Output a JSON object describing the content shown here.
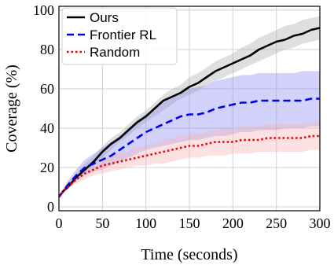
{
  "chart_data": {
    "type": "line",
    "xlabel": "Time (seconds)",
    "ylabel": "Coverage (%)",
    "xlim": [
      0,
      300
    ],
    "ylim": [
      -2,
      102
    ],
    "xticks": [
      0,
      50,
      100,
      150,
      200,
      250,
      300
    ],
    "yticks": [
      0,
      20,
      40,
      60,
      80,
      100
    ],
    "grid": true,
    "legend_position": "top-left",
    "x": [
      0,
      5,
      10,
      20,
      30,
      40,
      50,
      60,
      70,
      80,
      90,
      100,
      110,
      120,
      130,
      140,
      150,
      160,
      170,
      180,
      190,
      200,
      210,
      220,
      230,
      240,
      250,
      260,
      270,
      280,
      290,
      300
    ],
    "series": [
      {
        "name": "Ours",
        "color": "#000000",
        "band_color": "#b0b0b0",
        "dash": "solid",
        "values": [
          5,
          8,
          10,
          15,
          19,
          23,
          28,
          32,
          35,
          39,
          43,
          46,
          50,
          54,
          56,
          58,
          61,
          63,
          66,
          69,
          71,
          73,
          75,
          77,
          80,
          82,
          84,
          85,
          87,
          88,
          90,
          91
        ],
        "lower": [
          5,
          7,
          9,
          13,
          17,
          21,
          25,
          29,
          33,
          36,
          40,
          43,
          46,
          49,
          52,
          55,
          57,
          59,
          62,
          64,
          66,
          68,
          70,
          72,
          74,
          76,
          78,
          80,
          81,
          83,
          84,
          85
        ],
        "upper": [
          5,
          9,
          12,
          17,
          22,
          26,
          31,
          35,
          38,
          42,
          46,
          49,
          53,
          57,
          60,
          62,
          66,
          68,
          71,
          74,
          76,
          78,
          81,
          83,
          86,
          88,
          90,
          92,
          93,
          95,
          96,
          97
        ]
      },
      {
        "name": "Frontier RL",
        "color": "#0000ee",
        "band_color": "#8c8cf0",
        "dash": "dashed",
        "values": [
          5,
          8,
          11,
          16,
          20,
          22,
          24,
          26,
          29,
          32,
          35,
          38,
          40,
          42,
          44,
          46,
          47,
          47,
          48,
          50,
          51,
          52,
          53,
          53,
          54,
          54,
          54,
          54,
          54,
          54,
          55,
          55
        ],
        "lower": [
          5,
          7,
          9,
          13,
          16,
          18,
          19,
          21,
          23,
          25,
          27,
          29,
          30,
          31,
          32,
          33,
          34,
          34,
          35,
          36,
          36,
          37,
          38,
          38,
          39,
          39,
          39,
          40,
          40,
          40,
          41,
          41
        ],
        "upper": [
          5,
          9,
          13,
          19,
          24,
          27,
          30,
          33,
          36,
          40,
          44,
          47,
          50,
          53,
          56,
          58,
          60,
          61,
          62,
          64,
          65,
          66,
          67,
          67,
          68,
          68,
          68,
          68,
          68,
          69,
          69,
          69
        ]
      },
      {
        "name": "Random",
        "color": "#ee0000",
        "band_color": "#f4b4b4",
        "dash": "dotted",
        "values": [
          5,
          8,
          10,
          14,
          17,
          19,
          21,
          22,
          23,
          24,
          25,
          26,
          27,
          28,
          29,
          30,
          31,
          31,
          32,
          33,
          33,
          33,
          34,
          34,
          34,
          35,
          35,
          35,
          35,
          35,
          36,
          36
        ],
        "lower": [
          5,
          7,
          9,
          12,
          14,
          16,
          17,
          18,
          19,
          20,
          21,
          21,
          22,
          22,
          23,
          24,
          25,
          25,
          26,
          26,
          26,
          27,
          27,
          27,
          28,
          28,
          28,
          28,
          28,
          28,
          29,
          29
        ],
        "upper": [
          5,
          9,
          12,
          16,
          20,
          22,
          25,
          26,
          27,
          28,
          30,
          31,
          32,
          34,
          35,
          36,
          37,
          37,
          38,
          39,
          40,
          40,
          41,
          41,
          41,
          42,
          42,
          42,
          42,
          42,
          43,
          43
        ]
      }
    ]
  }
}
